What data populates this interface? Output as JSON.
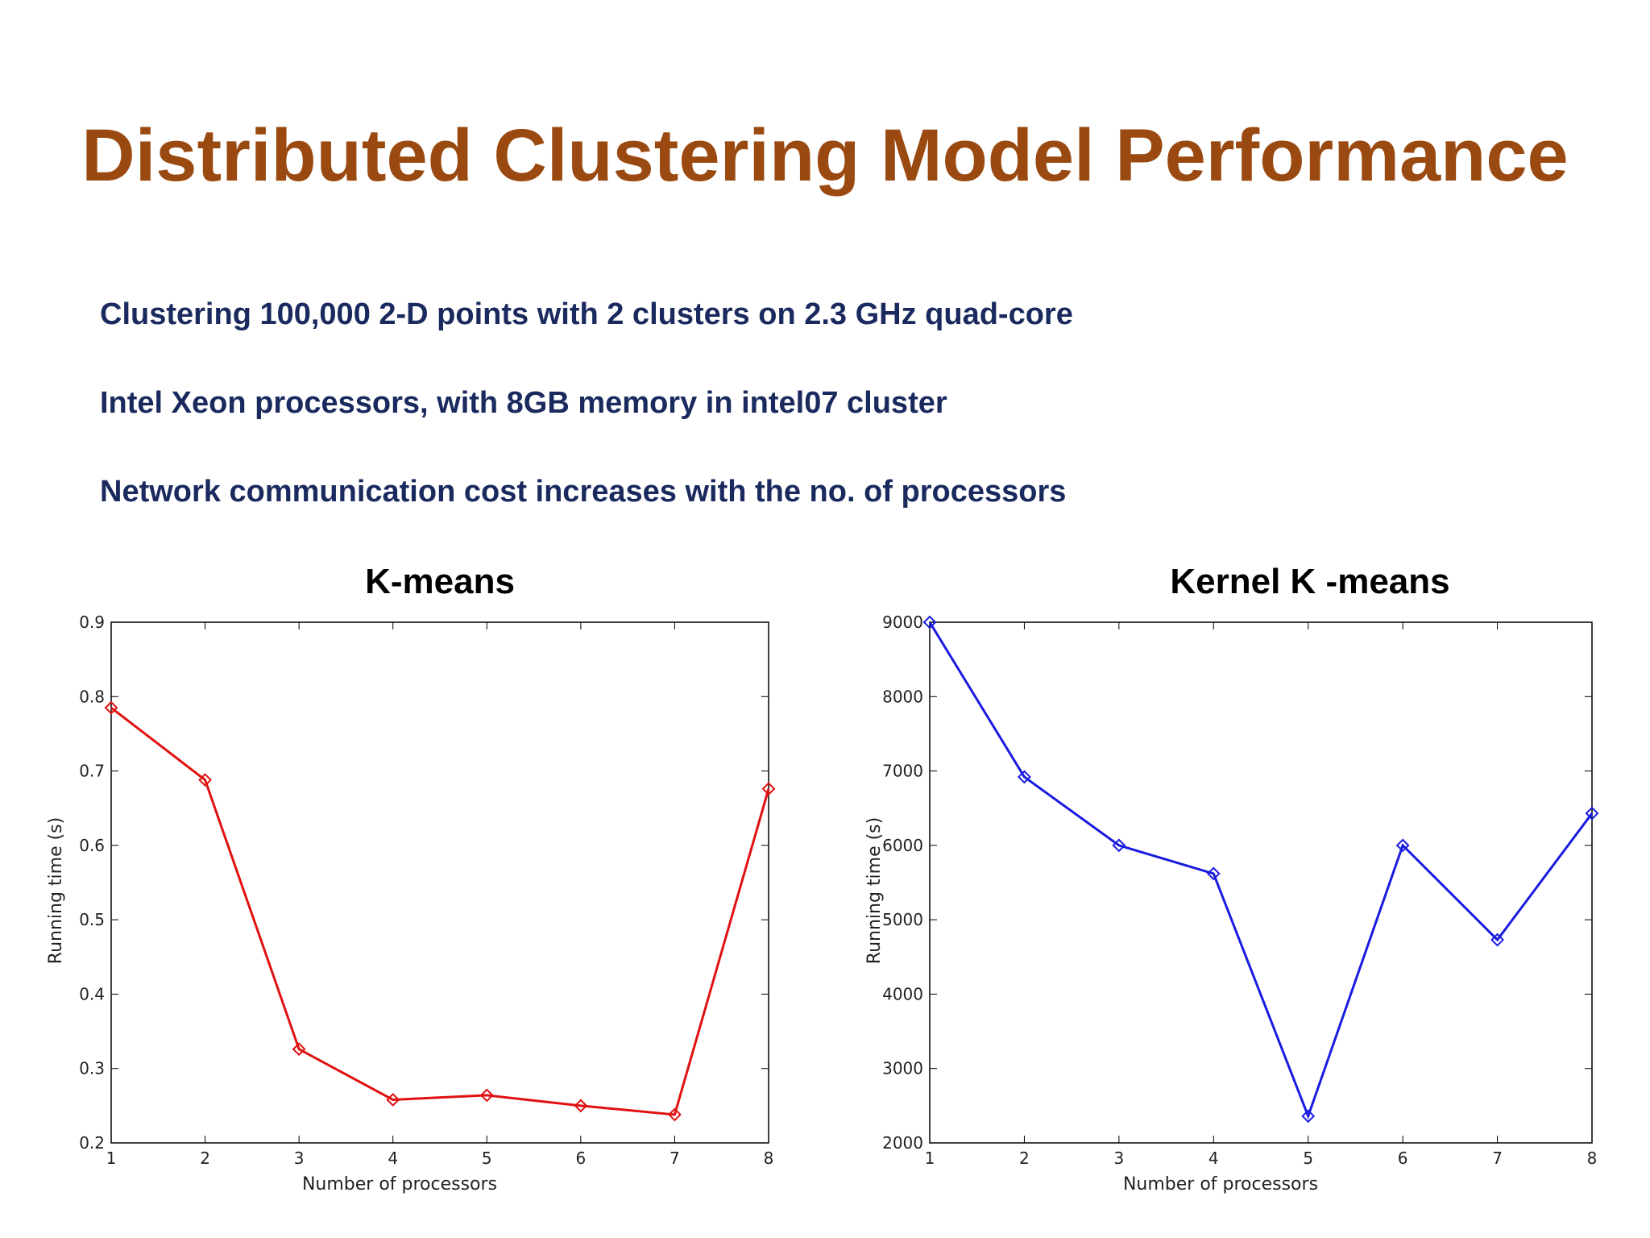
{
  "slide": {
    "title": "Distributed Clustering Model Performance",
    "bullets": [
      "Clustering 100,000 2-D points with 2 clusters on 2.3 GHz quad-core",
      "Intel Xeon processors, with 8GB memory in intel07 cluster",
      "Network communication cost increases with the no. of processors"
    ]
  },
  "colors": {
    "title": "#9a4a10",
    "bullet_text": "#1a2a5e",
    "series_left": "#e01010",
    "series_right": "#1a1ae0"
  },
  "chart_data": [
    {
      "type": "line",
      "title": "K-means",
      "xlabel": "Number of processors",
      "ylabel": "Running time (s)",
      "x": [
        1,
        2,
        3,
        4,
        5,
        6,
        7,
        8
      ],
      "series": [
        {
          "values": [
            0.785,
            0.688,
            0.326,
            0.258,
            0.264,
            0.25,
            0.238,
            0.676
          ]
        }
      ],
      "xlim": [
        1,
        8
      ],
      "ylim": [
        0.2,
        0.9
      ],
      "xticks": [
        "1",
        "2",
        "3",
        "4",
        "5",
        "6",
        "7",
        "8"
      ],
      "yticks": [
        "0.2",
        "0.3",
        "0.4",
        "0.5",
        "0.6",
        "0.7",
        "0.8",
        "0.9"
      ],
      "marker": "diamond",
      "grid": false
    },
    {
      "type": "line",
      "title": "Kernel K -means",
      "xlabel": "Number of processors",
      "ylabel": "Running time (s)",
      "x": [
        1,
        2,
        3,
        4,
        5,
        6,
        7,
        8
      ],
      "series": [
        {
          "values": [
            9000,
            6920,
            6000,
            5620,
            2360,
            6000,
            4730,
            6430
          ]
        }
      ],
      "xlim": [
        1,
        8
      ],
      "ylim": [
        2000,
        9000
      ],
      "xticks": [
        "1",
        "2",
        "3",
        "4",
        "5",
        "6",
        "7",
        "8"
      ],
      "yticks": [
        "2000",
        "3000",
        "4000",
        "5000",
        "6000",
        "7000",
        "8000",
        "9000"
      ],
      "marker": "diamond",
      "grid": false
    }
  ]
}
